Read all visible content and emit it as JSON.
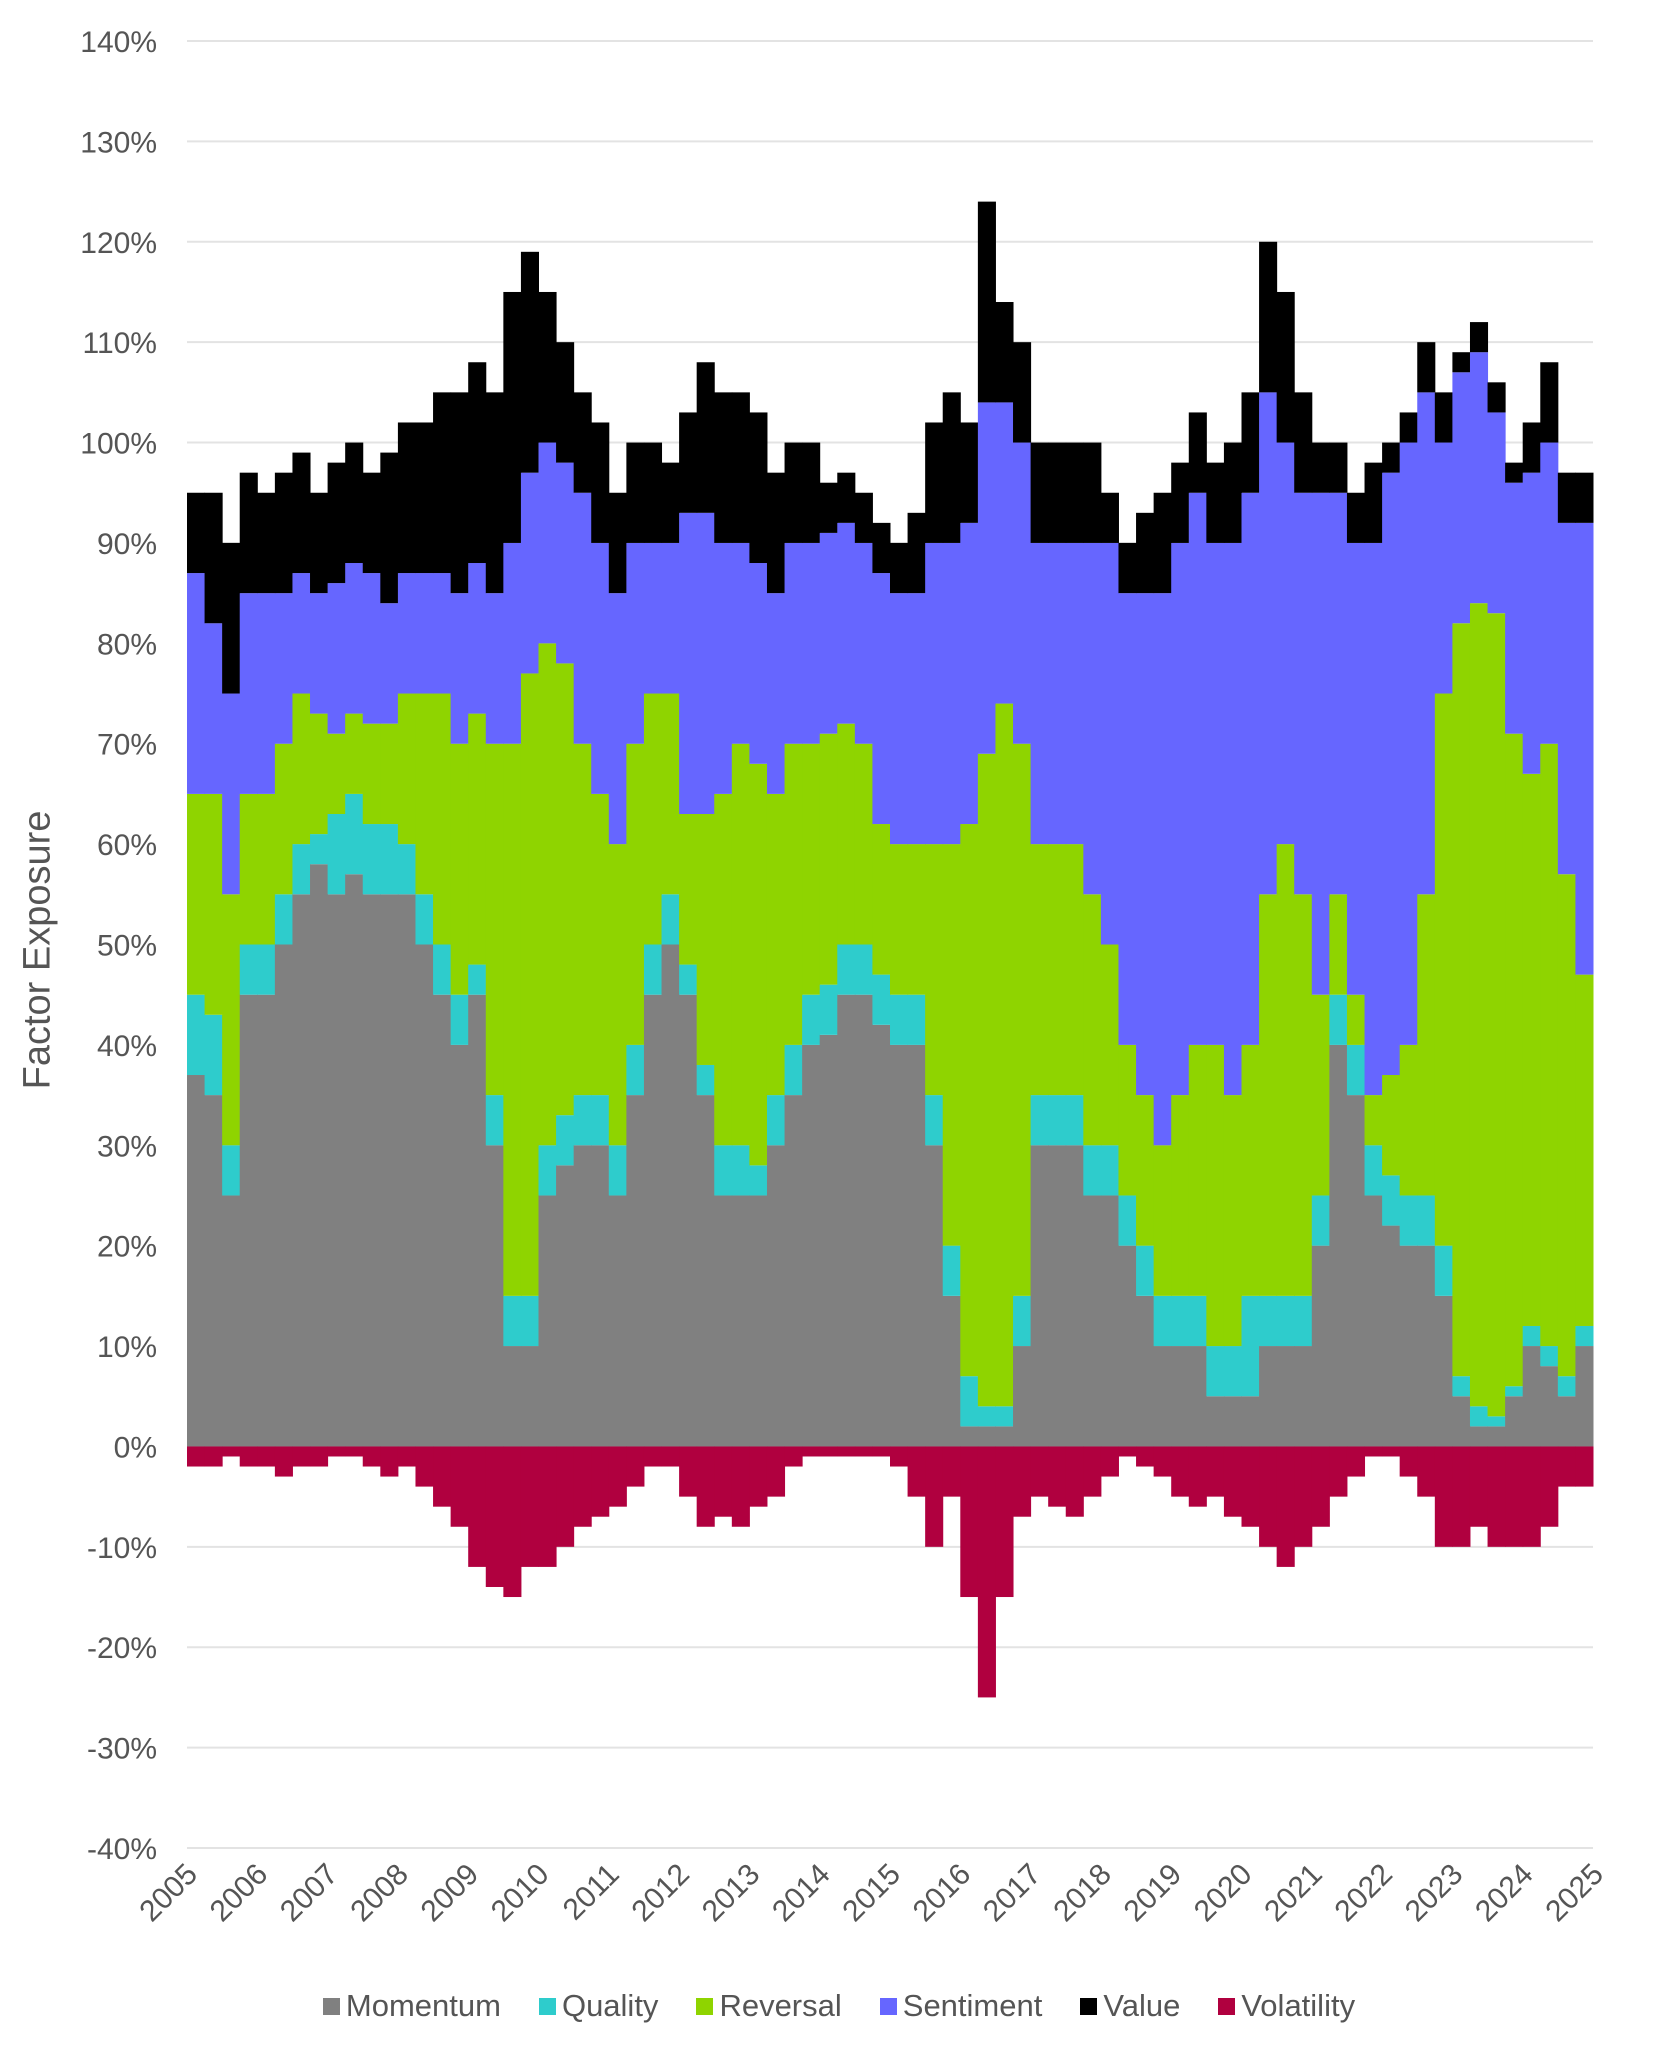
{
  "chart_data": {
    "type": "bar",
    "stacked": true,
    "ylabel": "Factor Exposure",
    "xlabel": "",
    "ylim": [
      -40,
      140
    ],
    "y_ticks": [
      "140%",
      "130%",
      "120%",
      "110%",
      "100%",
      "90%",
      "80%",
      "70%",
      "60%",
      "50%",
      "40%",
      "30%",
      "20%",
      "10%",
      "0%",
      "-10%",
      "-20%",
      "-30%",
      "-40%"
    ],
    "x_ticks": [
      "2005",
      "2006",
      "2007",
      "2008",
      "2009",
      "2010",
      "2011",
      "2012",
      "2013",
      "2014",
      "2015",
      "2016",
      "2017",
      "2018",
      "2019",
      "2020",
      "2021",
      "2022",
      "2023",
      "2024",
      "2025"
    ],
    "x_range": [
      2005,
      2025
    ],
    "periods_per_year": 4,
    "grid": true,
    "legend_position": "bottom",
    "series": [
      {
        "name": "Momentum",
        "color": "#808080",
        "values": [
          37,
          35,
          25,
          45,
          45,
          50,
          55,
          58,
          55,
          57,
          55,
          55,
          55,
          50,
          45,
          40,
          45,
          30,
          10,
          10,
          25,
          28,
          30,
          30,
          25,
          35,
          45,
          50,
          45,
          35,
          25,
          25,
          25,
          30,
          35,
          40,
          41,
          45,
          45,
          42,
          40,
          40,
          30,
          15,
          2,
          2,
          2,
          10,
          30,
          30,
          30,
          25,
          25,
          20,
          15,
          10,
          10,
          10,
          5,
          5,
          5,
          10,
          10,
          10,
          20,
          40,
          35,
          25,
          22,
          20,
          20,
          15,
          5,
          2,
          2,
          5,
          10,
          8,
          5,
          10
        ]
      },
      {
        "name": "Quality",
        "color": "#2ecccc",
        "values": [
          8,
          8,
          5,
          5,
          5,
          5,
          5,
          3,
          8,
          8,
          7,
          7,
          5,
          5,
          5,
          5,
          3,
          5,
          5,
          5,
          5,
          5,
          5,
          5,
          5,
          5,
          5,
          5,
          3,
          3,
          5,
          5,
          3,
          5,
          5,
          5,
          5,
          5,
          5,
          5,
          5,
          5,
          5,
          5,
          5,
          2,
          2,
          5,
          5,
          5,
          5,
          5,
          5,
          5,
          5,
          5,
          5,
          5,
          5,
          5,
          10,
          5,
          5,
          5,
          5,
          5,
          5,
          5,
          5,
          5,
          5,
          5,
          2,
          2,
          1,
          1,
          2,
          2,
          2,
          2
        ]
      },
      {
        "name": "Reversal",
        "color": "#8fd400",
        "values": [
          20,
          22,
          25,
          15,
          15,
          15,
          15,
          12,
          8,
          8,
          10,
          10,
          15,
          20,
          25,
          25,
          25,
          35,
          55,
          62,
          50,
          45,
          35,
          30,
          30,
          30,
          25,
          20,
          15,
          25,
          35,
          40,
          40,
          30,
          30,
          25,
          25,
          22,
          20,
          15,
          15,
          15,
          25,
          40,
          55,
          65,
          70,
          55,
          25,
          25,
          25,
          25,
          20,
          15,
          15,
          15,
          20,
          25,
          30,
          25,
          25,
          40,
          45,
          40,
          20,
          10,
          5,
          5,
          10,
          15,
          30,
          55,
          75,
          80,
          80,
          65,
          55,
          60,
          50,
          35
        ]
      },
      {
        "name": "Sentiment",
        "color": "#6666ff",
        "values": [
          22,
          17,
          20,
          20,
          20,
          15,
          12,
          12,
          15,
          15,
          15,
          12,
          12,
          12,
          12,
          15,
          15,
          15,
          20,
          20,
          20,
          20,
          25,
          25,
          25,
          20,
          15,
          15,
          30,
          30,
          25,
          20,
          20,
          20,
          20,
          20,
          20,
          20,
          20,
          25,
          25,
          25,
          30,
          30,
          30,
          35,
          30,
          30,
          30,
          30,
          30,
          35,
          40,
          45,
          50,
          55,
          55,
          55,
          50,
          55,
          55,
          50,
          40,
          40,
          50,
          40,
          45,
          55,
          60,
          60,
          50,
          25,
          25,
          25,
          20,
          25,
          30,
          30,
          35,
          45
        ]
      },
      {
        "name": "Value",
        "color": "#000000",
        "values": [
          8,
          13,
          15,
          12,
          10,
          12,
          12,
          10,
          12,
          12,
          10,
          15,
          15,
          15,
          18,
          20,
          20,
          20,
          25,
          22,
          15,
          12,
          10,
          12,
          10,
          10,
          10,
          8,
          10,
          15,
          15,
          15,
          15,
          12,
          10,
          10,
          5,
          5,
          5,
          5,
          5,
          8,
          12,
          15,
          10,
          20,
          10,
          10,
          10,
          10,
          10,
          10,
          5,
          5,
          8,
          10,
          8,
          8,
          8,
          10,
          10,
          15,
          15,
          10,
          5,
          5,
          5,
          8,
          3,
          3,
          5,
          5,
          2,
          3,
          3,
          2,
          5,
          8,
          5,
          5
        ]
      },
      {
        "name": "Volatility",
        "color": "#b0003f",
        "values": [
          -2,
          -2,
          -1,
          -2,
          -2,
          -3,
          -2,
          -2,
          -1,
          -1,
          -2,
          -3,
          -2,
          -4,
          -6,
          -8,
          -12,
          -14,
          -15,
          -12,
          -12,
          -10,
          -8,
          -7,
          -6,
          -4,
          -2,
          -2,
          -5,
          -8,
          -7,
          -8,
          -6,
          -5,
          -2,
          -1,
          -1,
          -1,
          -1,
          -1,
          -2,
          -5,
          -10,
          -5,
          -15,
          -25,
          -15,
          -7,
          -5,
          -6,
          -7,
          -5,
          -3,
          -1,
          -2,
          -3,
          -5,
          -6,
          -5,
          -7,
          -8,
          -10,
          -12,
          -10,
          -8,
          -5,
          -3,
          -1,
          -1,
          -3,
          -5,
          -10,
          -10,
          -8,
          -10,
          -10,
          -10,
          -8,
          -4,
          -4
        ]
      }
    ]
  }
}
